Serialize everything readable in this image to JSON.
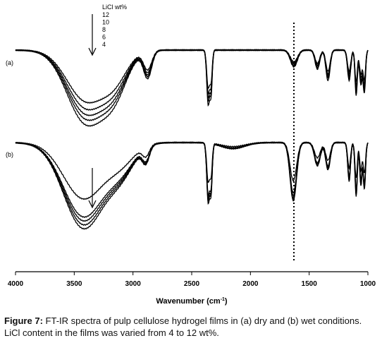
{
  "chart_data": {
    "type": "line",
    "xlabel": "Wavenumber (cm",
    "xlabel_sup": "-1",
    "xlabel_close": ")",
    "x_ticks": [
      4000,
      3500,
      3000,
      2500,
      2000,
      1500,
      1000
    ],
    "xlim": [
      4000,
      1000
    ],
    "x_reversed": true,
    "legend_title": "LiCl wt%",
    "legend_entries": [
      "12",
      "10",
      "8",
      "6",
      "4"
    ],
    "panels": [
      {
        "label": "(a)",
        "condition": "dry"
      },
      {
        "label": "(b)",
        "condition": "wet"
      }
    ],
    "reference_line_wavenumber": 1630,
    "series_count_per_panel": 5
  },
  "caption": {
    "label": "Figure 7:",
    "text": "FT-IR spectra of pulp cellulose hydrogel films in (a) dry and (b) wet conditions. LiCl content in the films was varied from 4 to 12 wt%."
  }
}
